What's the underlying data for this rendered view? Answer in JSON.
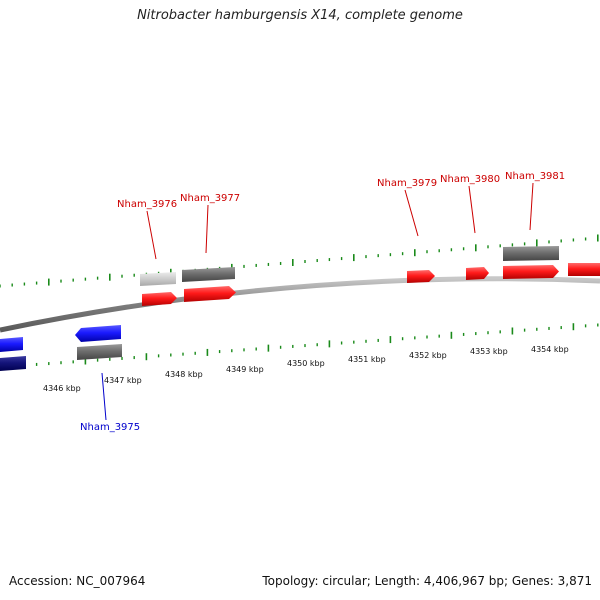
{
  "title": "Nitrobacter hamburgensis X14, complete genome",
  "accession_text": "Accession: NC_007964",
  "summary_text": "Topology: circular; Length: 4,406,967 bp; Genes: 3,871",
  "colors": {
    "backbone": "#8c8c8c",
    "tick": "#1a8a1a",
    "forward_label": "#cc0000",
    "reverse_label": "#0000cc"
  },
  "kbp_labels": [
    "4346 kbp",
    "4347 kbp",
    "4348 kbp",
    "4349 kbp",
    "4350 kbp",
    "4351 kbp",
    "4352 kbp",
    "4353 kbp",
    "4354 kbp"
  ],
  "gene_labels": [
    {
      "id": "Nham_3975",
      "strand": "reverse"
    },
    {
      "id": "Nham_3976",
      "strand": "forward"
    },
    {
      "id": "Nham_3977",
      "strand": "forward"
    },
    {
      "id": "Nham_3979",
      "strand": "forward"
    },
    {
      "id": "Nham_3980",
      "strand": "forward"
    },
    {
      "id": "Nham_3981",
      "strand": "forward"
    }
  ]
}
